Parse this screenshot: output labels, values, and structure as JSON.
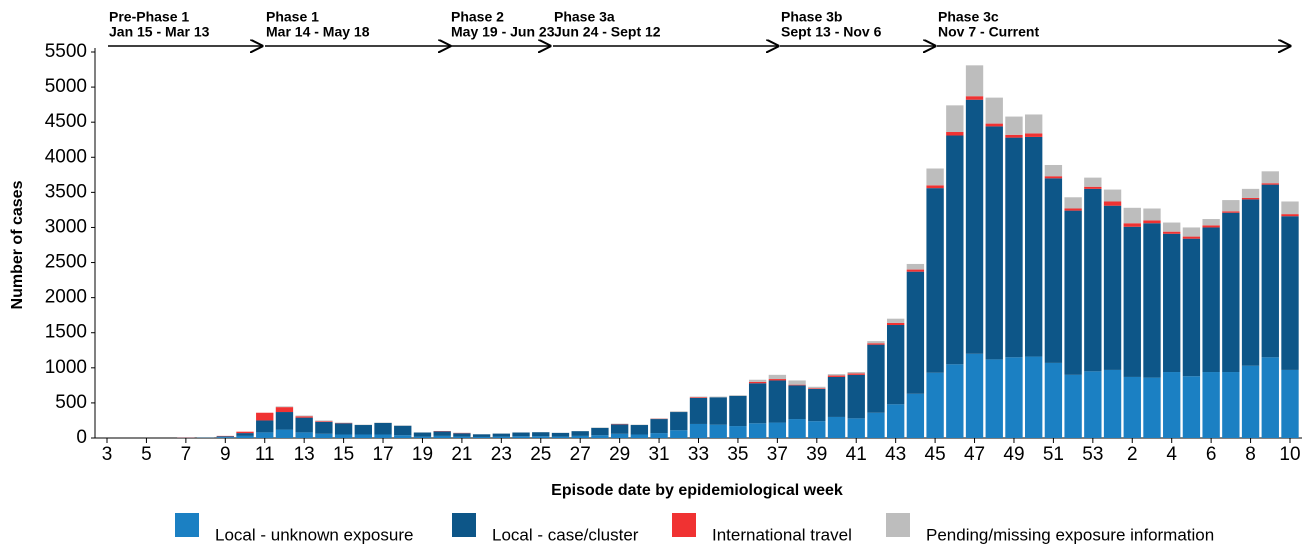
{
  "chart_data": {
    "type": "stacked-bar",
    "y_label": "Number of cases",
    "x_label": "Episode date by epidemiological week",
    "phases": [
      {
        "name": "Pre-Phase 1",
        "dates": "Jan 15 - Mar 13"
      },
      {
        "name": "Phase 1",
        "dates": "Mar 14 - May 18"
      },
      {
        "name": "Phase 2",
        "dates": "May 19 - Jun 23"
      },
      {
        "name": "Phase 3a",
        "dates": "Jun 24 - Sept 12"
      },
      {
        "name": "Phase 3b",
        "dates": "Sept 13 - Nov 6"
      },
      {
        "name": "Phase 3c",
        "dates": "Nov 7 - Current"
      }
    ],
    "categories": [
      "3",
      null,
      "5",
      null,
      "7",
      null,
      "9",
      null,
      "11",
      null,
      "13",
      null,
      "15",
      null,
      "17",
      null,
      "19",
      null,
      "21",
      null,
      "23",
      null,
      "25",
      null,
      "27",
      null,
      "29",
      null,
      "31",
      null,
      "33",
      null,
      "35",
      null,
      "37",
      null,
      "39",
      null,
      "41",
      null,
      "43",
      null,
      "45",
      null,
      "47",
      null,
      "49",
      null,
      "51",
      null,
      "53",
      null,
      "2",
      null,
      "4",
      null,
      "6",
      null,
      "8",
      null,
      "10"
    ],
    "series": [
      {
        "name": "Local - unknown exposure",
        "color": "#1b80c3",
        "values": [
          0,
          0,
          0,
          0,
          2,
          0,
          10,
          30,
          80,
          120,
          80,
          60,
          50,
          50,
          50,
          40,
          20,
          30,
          20,
          15,
          20,
          25,
          25,
          20,
          30,
          40,
          60,
          50,
          70,
          110,
          200,
          190,
          170,
          210,
          220,
          270,
          240,
          300,
          280,
          360,
          480,
          630,
          930,
          1050,
          1200,
          1120,
          1150,
          1160,
          1070,
          900,
          950,
          970,
          870,
          860,
          940,
          880,
          940,
          940,
          1030,
          1150,
          970
        ]
      },
      {
        "name": "Local - case/cluster",
        "color": "#0d5688",
        "values": [
          0,
          0,
          0,
          0,
          2,
          5,
          15,
          40,
          170,
          250,
          210,
          170,
          160,
          135,
          165,
          135,
          58,
          65,
          48,
          38,
          43,
          53,
          58,
          53,
          68,
          105,
          135,
          135,
          200,
          260,
          370,
          390,
          430,
          570,
          600,
          480,
          460,
          570,
          620,
          970,
          1130,
          1740,
          2630,
          3260,
          3620,
          3320,
          3130,
          3130,
          2630,
          2340,
          2600,
          2340,
          2140,
          2200,
          1970,
          1960,
          2060,
          2270,
          2370,
          2460,
          2190
        ]
      },
      {
        "name": "International travel",
        "color": "#f03232",
        "values": [
          0,
          0,
          0,
          0,
          3,
          0,
          5,
          20,
          110,
          70,
          20,
          10,
          5,
          0,
          0,
          0,
          0,
          5,
          5,
          0,
          0,
          0,
          0,
          0,
          0,
          0,
          5,
          0,
          5,
          0,
          10,
          0,
          0,
          20,
          20,
          10,
          10,
          20,
          20,
          20,
          30,
          30,
          40,
          50,
          50,
          40,
          40,
          50,
          30,
          30,
          30,
          60,
          50,
          40,
          30,
          30,
          30,
          20,
          20,
          20,
          30
        ]
      },
      {
        "name": "Pending/missing exposure information",
        "color": "#bdbdbd",
        "values": [
          0,
          0,
          0,
          0,
          0,
          0,
          0,
          0,
          0,
          10,
          10,
          10,
          5,
          5,
          5,
          5,
          2,
          0,
          2,
          2,
          2,
          2,
          2,
          2,
          2,
          5,
          5,
          5,
          5,
          10,
          10,
          10,
          10,
          30,
          60,
          60,
          20,
          20,
          20,
          30,
          60,
          80,
          240,
          380,
          440,
          370,
          260,
          270,
          160,
          160,
          130,
          170,
          220,
          170,
          130,
          130,
          90,
          160,
          130,
          170,
          180
        ]
      }
    ],
    "ylim": [
      0,
      5500
    ],
    "yticks": [
      0,
      500,
      1000,
      1500,
      2000,
      2500,
      3000,
      3500,
      4000,
      4500,
      5000,
      5500
    ]
  }
}
